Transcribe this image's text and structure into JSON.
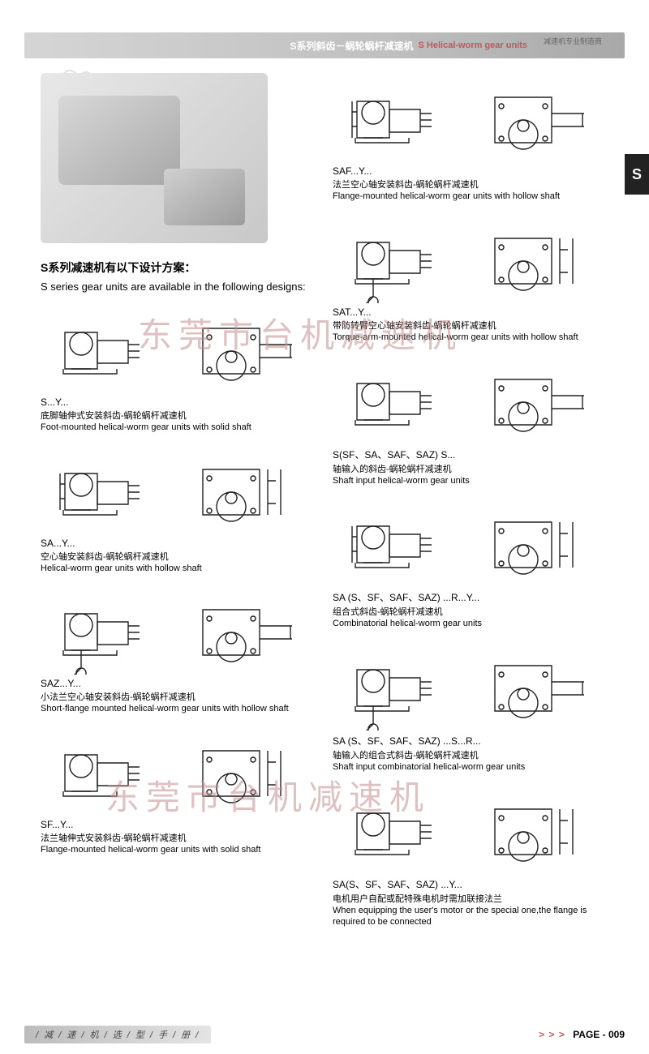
{
  "header": {
    "title_cn": "S系列斜齿－蜗轮蜗杆减速机",
    "title_en": "S Helical-worm gear units",
    "subtitle": "减速机专业制造商"
  },
  "side_tab": "S",
  "watermark": "东莞市台机减速机",
  "intro": {
    "cn": "S系列减速机有以下设计方案：",
    "en": "S series gear units are available in the following designs:"
  },
  "left_items": [
    {
      "code": "S...Y...",
      "cn": "底脚轴伸式安装斜齿-蜗轮蜗杆减速机",
      "en": "Foot-mounted helical-worm gear units with solid shaft"
    },
    {
      "code": "SA...Y...",
      "cn": "空心轴安装斜齿-蜗轮蜗杆减速机",
      "en": "Helical-worm gear units with hollow shaft"
    },
    {
      "code": "SAZ...Y...",
      "cn": "小法兰空心轴安装斜齿-蜗轮蜗杆减速机",
      "en": "Short-flange mounted helical-worm gear units with hollow shaft"
    },
    {
      "code": "SF...Y...",
      "cn": "法兰轴伸式安装斜齿-蜗轮蜗杆减速机",
      "en": "Flange-mounted helical-worm gear units with solid shaft"
    }
  ],
  "right_items": [
    {
      "code": "SAF...Y...",
      "cn": "法兰空心轴安装斜齿-蜗轮蜗杆减速机",
      "en": "Flange-mounted helical-worm gear units with hollow shaft"
    },
    {
      "code": "SAT...Y...",
      "cn": "带防转臂空心轴安装斜齿-蜗轮蜗杆减速机",
      "en": "Torque-arm-mounted helical-worm gear units with hollow shaft"
    },
    {
      "code": "S(SF、SA、SAF、SAZ) S...",
      "cn": "轴输入的斜齿-蜗轮蜗杆减速机",
      "en": "Shaft input helical-worm gear units"
    },
    {
      "code": "SA (S、SF、SAF、SAZ) ...R...Y...",
      "cn": "组合式斜齿-蜗轮蜗杆减速机",
      "en": "Combinatorial helical-worm gear units"
    },
    {
      "code": "SA (S、SF、SAF、SAZ) ...S...R...",
      "cn": "轴输入的组合式斜齿-蜗轮蜗杆减速机",
      "en": "Shaft input combinatorial helical-worm gear units"
    },
    {
      "code": "SA(S、SF、SAF、SAZ) ...Y...",
      "cn": "电机用户自配或配特殊电机时需加联接法兰",
      "en": "When equipping the user's motor or the special one,the flange is required to be connected"
    }
  ],
  "footer": {
    "left": "/ 减 / 速 / 机 / 选 / 型 / 手 / 册 /",
    "arrows": "> > >",
    "page": "PAGE - 009"
  },
  "colors": {
    "accent": "#b85c5c",
    "band_dark": "#a8a8a8",
    "watermark": "#c49090",
    "tab": "#222222"
  }
}
